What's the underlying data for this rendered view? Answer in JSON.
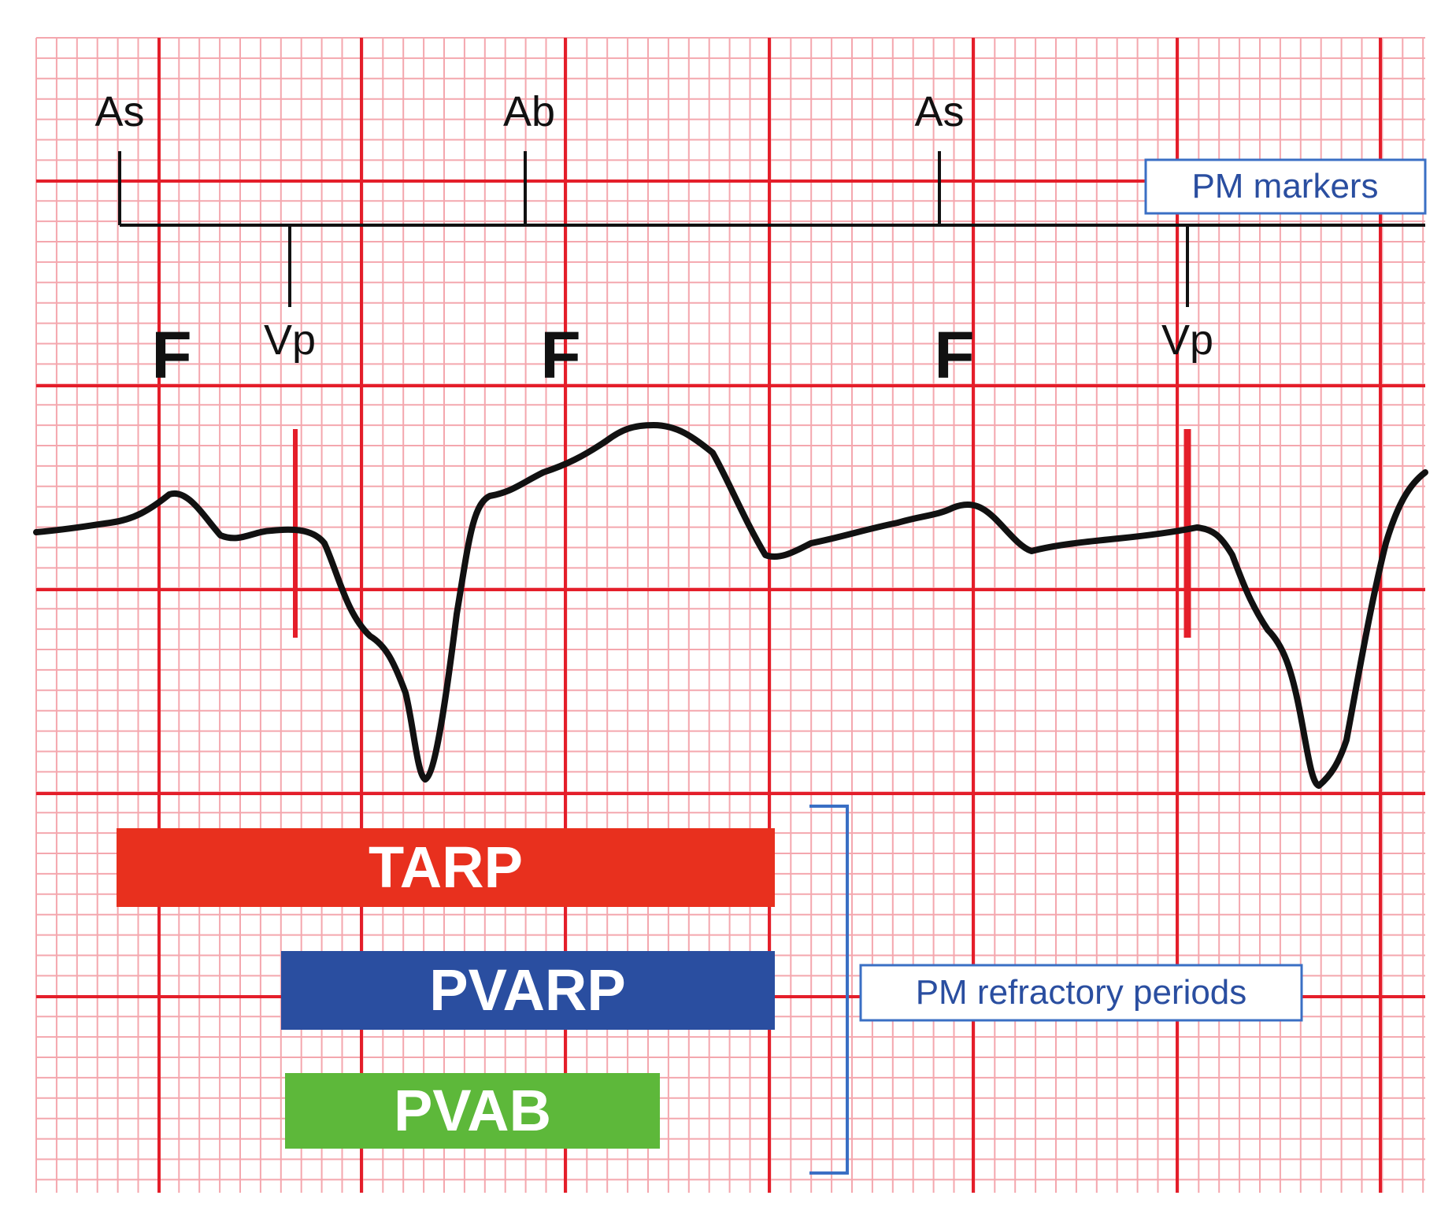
{
  "markers": {
    "top": [
      {
        "label": "As"
      },
      {
        "label": "Ab"
      },
      {
        "label": "As"
      }
    ],
    "bottom": [
      {
        "label": "Vp"
      },
      {
        "label": "Vp"
      }
    ],
    "box_label": "PM markers"
  },
  "f_waves": [
    "F",
    "F",
    "F"
  ],
  "refractory": {
    "bars": [
      {
        "label": "TARP",
        "color": "#e8301e"
      },
      {
        "label": "PVARP",
        "color": "#2a4ea0"
      },
      {
        "label": "PVAB",
        "color": "#5db83a"
      }
    ],
    "box_label": "PM refractory periods"
  },
  "colors": {
    "grid_minor": "#f4a7ae",
    "grid_major": "#e41e2a",
    "trace": "#111111",
    "pacing_spike": "#e41e2a",
    "box_border": "#3a6fc4",
    "box_text": "#2a4ea0"
  }
}
